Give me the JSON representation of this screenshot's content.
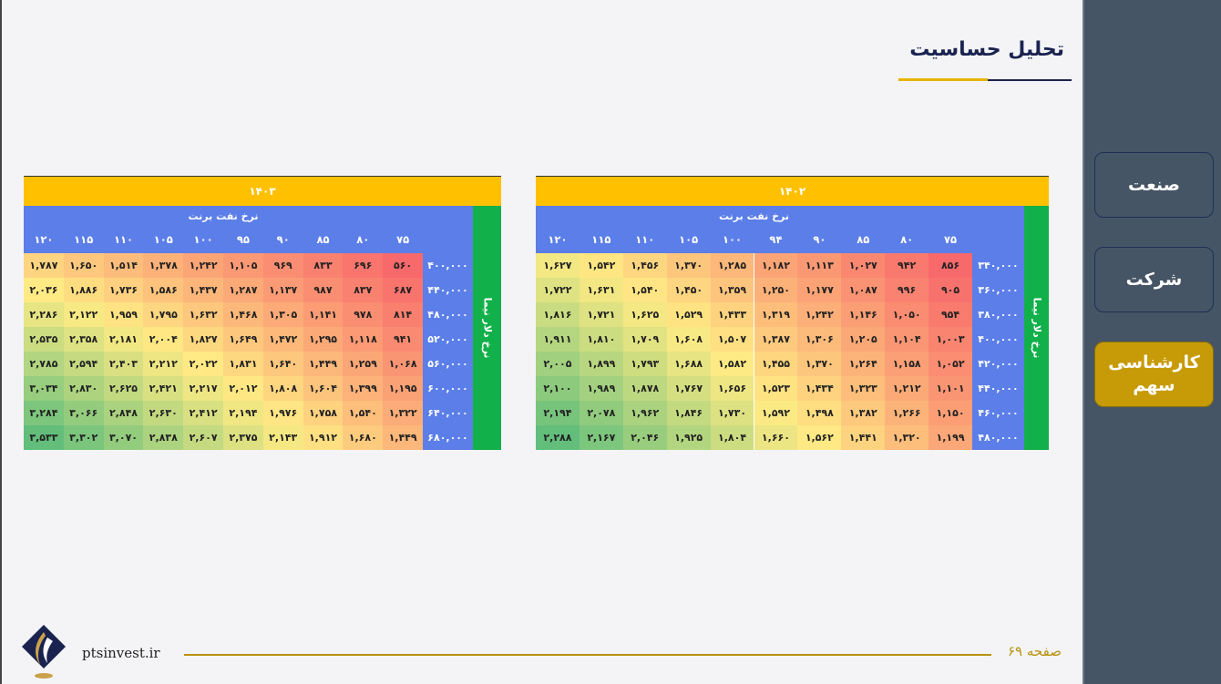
{
  "page": {
    "title": "تحلیل حساسیت",
    "footer_url": "ptsinvest.ir",
    "footer_page": "صفحه ۶۹"
  },
  "sidebar": {
    "items": [
      {
        "label": "صنعت",
        "active": false
      },
      {
        "label": "شرکت",
        "active": false
      },
      {
        "label": "کارشناسی سهم",
        "active": true
      }
    ]
  },
  "colors": {
    "sidebar_bg": "#465565",
    "active_button": "#c79b07",
    "header_gold": "#ffc000",
    "header_blue": "#5b7ee8",
    "side_green": "#12b04a",
    "title_navy": "#1a2350",
    "heat_low": "#f8696b",
    "heat_mid": "#ffeb84",
    "heat_high": "#63be7b"
  },
  "tables": [
    {
      "year": "۱۴۰۳",
      "col_axis_label": "نرخ نفت برنت",
      "row_axis_label": "نرخ دلار نیما",
      "columns": [
        "۷۵",
        "۸۰",
        "۸۵",
        "۹۰",
        "۹۵",
        "۱۰۰",
        "۱۰۵",
        "۱۱۰",
        "۱۱۵",
        "۱۲۰"
      ],
      "rows": [
        "۴۰۰,۰۰۰",
        "۴۴۰,۰۰۰",
        "۴۸۰,۰۰۰",
        "۵۲۰,۰۰۰",
        "۵۶۰,۰۰۰",
        "۶۰۰,۰۰۰",
        "۶۴۰,۰۰۰",
        "۶۸۰,۰۰۰"
      ],
      "values": [
        [
          560,
          696,
          833,
          969,
          1105,
          1242,
          1378,
          1514,
          1650,
          1787
        ],
        [
          687,
          837,
          987,
          1137,
          1287,
          1437,
          1586,
          1736,
          1886,
          2036
        ],
        [
          814,
          978,
          1141,
          1305,
          1468,
          1632,
          1795,
          1959,
          2122,
          2286
        ],
        [
          941,
          1118,
          1295,
          1472,
          1649,
          1827,
          2004,
          2181,
          2358,
          2535
        ],
        [
          1068,
          1259,
          1449,
          1640,
          1831,
          2022,
          2212,
          2403,
          2594,
          2785
        ],
        [
          1195,
          1399,
          1604,
          1808,
          2012,
          2217,
          2421,
          2625,
          2830,
          3034
        ],
        [
          1322,
          1540,
          1758,
          1976,
          2194,
          2412,
          2630,
          2848,
          3066,
          3284
        ],
        [
          1449,
          1680,
          1912,
          2143,
          2375,
          2607,
          2838,
          3070,
          3302,
          3533
        ]
      ],
      "display": [
        [
          "۵۶۰",
          "۶۹۶",
          "۸۳۳",
          "۹۶۹",
          "۱,۱۰۵",
          "۱,۲۴۲",
          "۱,۳۷۸",
          "۱,۵۱۴",
          "۱,۶۵۰",
          "۱,۷۸۷"
        ],
        [
          "۶۸۷",
          "۸۳۷",
          "۹۸۷",
          "۱,۱۳۷",
          "۱,۲۸۷",
          "۱,۴۳۷",
          "۱,۵۸۶",
          "۱,۷۳۶",
          "۱,۸۸۶",
          "۲,۰۳۶"
        ],
        [
          "۸۱۴",
          "۹۷۸",
          "۱,۱۴۱",
          "۱,۳۰۵",
          "۱,۴۶۸",
          "۱,۶۳۲",
          "۱,۷۹۵",
          "۱,۹۵۹",
          "۲,۱۲۲",
          "۲,۲۸۶"
        ],
        [
          "۹۴۱",
          "۱,۱۱۸",
          "۱,۲۹۵",
          "۱,۴۷۲",
          "۱,۶۴۹",
          "۱,۸۲۷",
          "۲,۰۰۴",
          "۲,۱۸۱",
          "۲,۳۵۸",
          "۲,۵۳۵"
        ],
        [
          "۱,۰۶۸",
          "۱,۲۵۹",
          "۱,۴۴۹",
          "۱,۶۴۰",
          "۱,۸۳۱",
          "۲,۰۲۲",
          "۲,۲۱۲",
          "۲,۴۰۳",
          "۲,۵۹۴",
          "۲,۷۸۵"
        ],
        [
          "۱,۱۹۵",
          "۱,۳۹۹",
          "۱,۶۰۴",
          "۱,۸۰۸",
          "۲,۰۱۲",
          "۲,۲۱۷",
          "۲,۴۲۱",
          "۲,۶۲۵",
          "۲,۸۳۰",
          "۳,۰۳۴"
        ],
        [
          "۱,۳۲۲",
          "۱,۵۴۰",
          "۱,۷۵۸",
          "۱,۹۷۶",
          "۲,۱۹۴",
          "۲,۴۱۲",
          "۲,۶۳۰",
          "۲,۸۴۸",
          "۳,۰۶۶",
          "۳,۲۸۴"
        ],
        [
          "۱,۴۴۹",
          "۱,۶۸۰",
          "۱,۹۱۲",
          "۲,۱۴۳",
          "۲,۳۷۵",
          "۲,۶۰۷",
          "۲,۸۳۸",
          "۳,۰۷۰",
          "۳,۳۰۲",
          "۳,۵۳۳"
        ]
      ]
    },
    {
      "year": "۱۴۰۲",
      "col_axis_label": "نرخ نفت برنت",
      "row_axis_label": "نرخ دلار نیما",
      "columns": [
        "۷۵",
        "۸۰",
        "۸۵",
        "۹۰",
        "۹۴",
        "۱۰۰",
        "۱۰۵",
        "۱۱۰",
        "۱۱۵",
        "۱۲۰"
      ],
      "rows": [
        "۳۴۰,۰۰۰",
        "۳۶۰,۰۰۰",
        "۳۸۰,۰۰۰",
        "۴۰۰,۰۰۰",
        "۴۲۰,۰۰۰",
        "۴۴۰,۰۰۰",
        "۴۶۰,۰۰۰",
        "۴۸۰,۰۰۰"
      ],
      "values": [
        [
          856,
          942,
          1027,
          1113,
          1182,
          1285,
          1370,
          1456,
          1542,
          1627
        ],
        [
          905,
          996,
          1087,
          1177,
          1250,
          1359,
          1450,
          1540,
          1631,
          1722
        ],
        [
          954,
          1050,
          1146,
          1242,
          1319,
          1433,
          1529,
          1625,
          1721,
          1816
        ],
        [
          1003,
          1104,
          1205,
          1306,
          1387,
          1507,
          1608,
          1709,
          1810,
          1911
        ],
        [
          1052,
          1158,
          1264,
          1370,
          1455,
          1582,
          1688,
          1793,
          1899,
          2005
        ],
        [
          1101,
          1212,
          1323,
          1434,
          1523,
          1656,
          1767,
          1878,
          1989,
          2100
        ],
        [
          1150,
          1266,
          1382,
          1498,
          1592,
          1730,
          1846,
          1962,
          2078,
          2194
        ],
        [
          1199,
          1320,
          1441,
          1562,
          1660,
          1804,
          1925,
          2046,
          2167,
          2288
        ]
      ],
      "display": [
        [
          "۸۵۶",
          "۹۴۲",
          "۱,۰۲۷",
          "۱,۱۱۳",
          "۱,۱۸۲",
          "۱,۲۸۵",
          "۱,۳۷۰",
          "۱,۴۵۶",
          "۱,۵۴۲",
          "۱,۶۲۷"
        ],
        [
          "۹۰۵",
          "۹۹۶",
          "۱,۰۸۷",
          "۱,۱۷۷",
          "۱,۲۵۰",
          "۱,۳۵۹",
          "۱,۴۵۰",
          "۱,۵۴۰",
          "۱,۶۳۱",
          "۱,۷۲۲"
        ],
        [
          "۹۵۴",
          "۱,۰۵۰",
          "۱,۱۴۶",
          "۱,۲۴۲",
          "۱,۳۱۹",
          "۱,۴۳۳",
          "۱,۵۲۹",
          "۱,۶۲۵",
          "۱,۷۲۱",
          "۱,۸۱۶"
        ],
        [
          "۱,۰۰۳",
          "۱,۱۰۴",
          "۱,۲۰۵",
          "۱,۳۰۶",
          "۱,۳۸۷",
          "۱,۵۰۷",
          "۱,۶۰۸",
          "۱,۷۰۹",
          "۱,۸۱۰",
          "۱,۹۱۱"
        ],
        [
          "۱,۰۵۲",
          "۱,۱۵۸",
          "۱,۲۶۴",
          "۱,۳۷۰",
          "۱,۴۵۵",
          "۱,۵۸۲",
          "۱,۶۸۸",
          "۱,۷۹۳",
          "۱,۸۹۹",
          "۲,۰۰۵"
        ],
        [
          "۱,۱۰۱",
          "۱,۲۱۲",
          "۱,۳۲۳",
          "۱,۴۳۴",
          "۱,۵۲۳",
          "۱,۶۵۶",
          "۱,۷۶۷",
          "۱,۸۷۸",
          "۱,۹۸۹",
          "۲,۱۰۰"
        ],
        [
          "۱,۱۵۰",
          "۱,۲۶۶",
          "۱,۳۸۲",
          "۱,۴۹۸",
          "۱,۵۹۲",
          "۱,۷۳۰",
          "۱,۸۴۶",
          "۱,۹۶۲",
          "۲,۰۷۸",
          "۲,۱۹۴"
        ],
        [
          "۱,۱۹۹",
          "۱,۳۲۰",
          "۱,۴۴۱",
          "۱,۵۶۲",
          "۱,۶۶۰",
          "۱,۸۰۴",
          "۱,۹۲۵",
          "۲,۰۴۶",
          "۲,۱۶۷",
          "۲,۲۸۸"
        ]
      ]
    }
  ]
}
